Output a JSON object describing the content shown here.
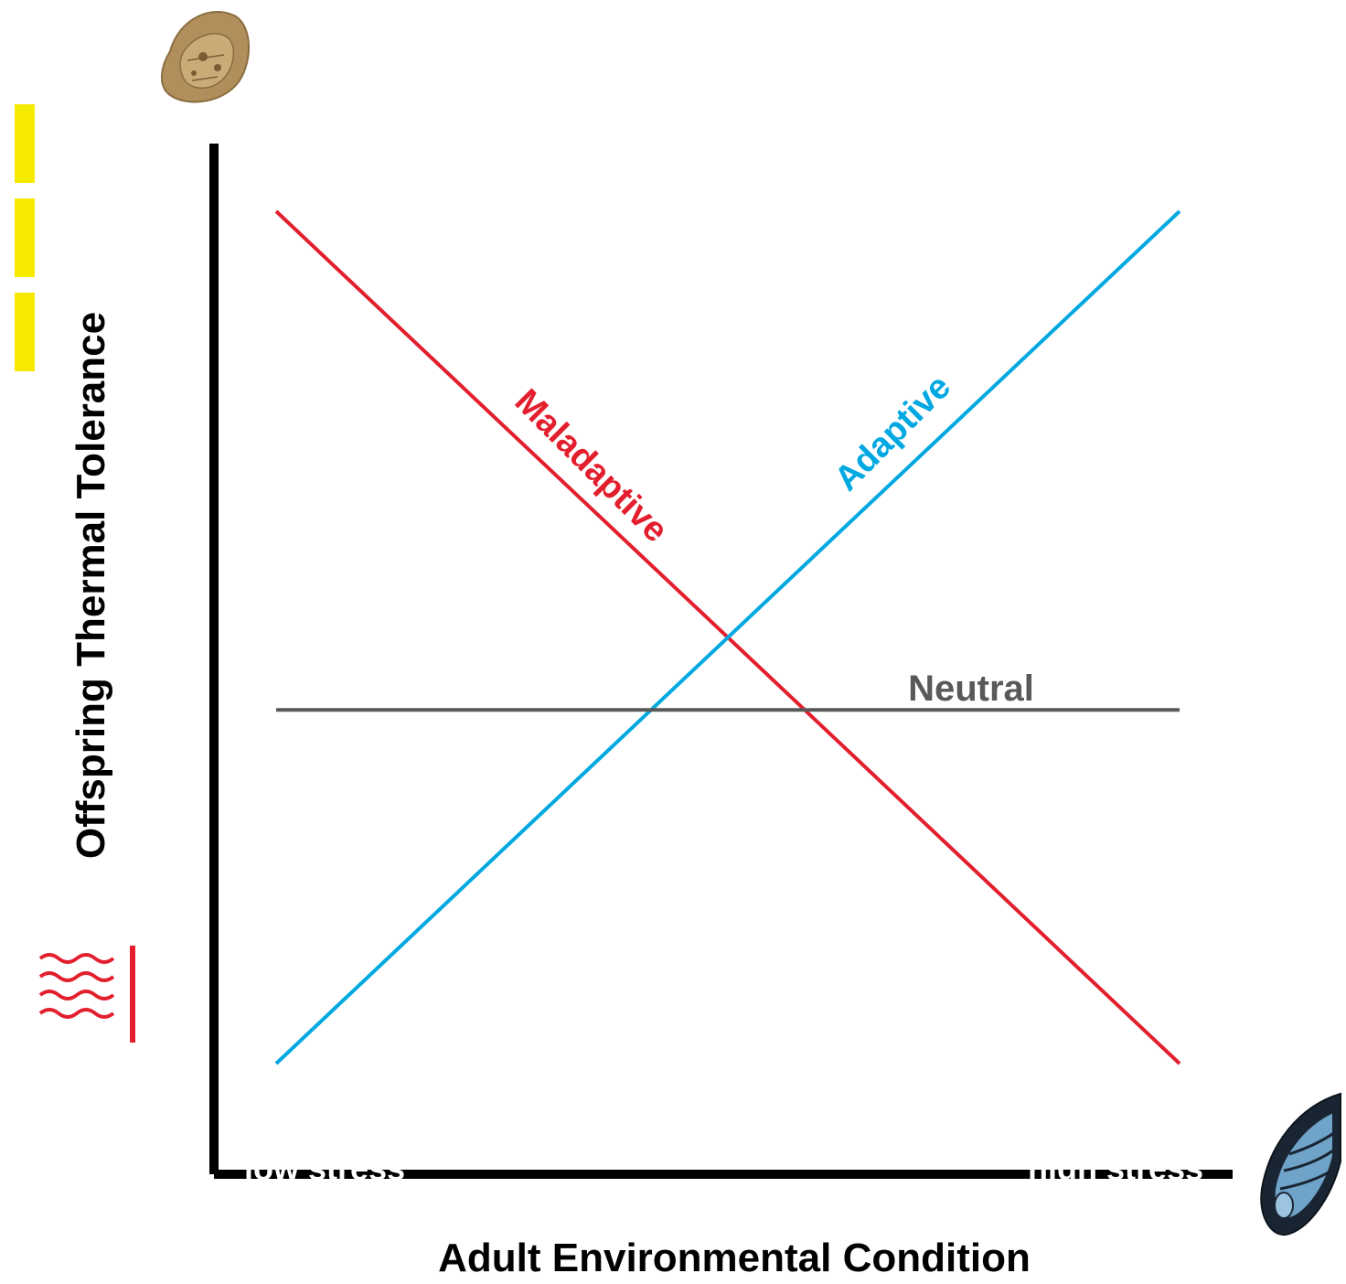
{
  "figure": {
    "y_axis_title": "Offspring Thermal Tolerance",
    "x_axis_title": "Adult Environmental Condition",
    "x_axis_low_label": "low stress",
    "x_axis_high_label": "high stress"
  },
  "chart_data": {
    "type": "line",
    "xlabel": "Adult Environmental Condition",
    "ylabel": "Offspring Thermal Tolerance",
    "x_tick_labels": [
      "low stress",
      "high stress"
    ],
    "series": [
      {
        "name": "Maladaptive",
        "color": "#e31e2d",
        "x": [
          0,
          1
        ],
        "y": [
          1,
          0
        ]
      },
      {
        "name": "Adaptive",
        "color": "#00a8e1",
        "x": [
          0,
          1
        ],
        "y": [
          0,
          1
        ]
      },
      {
        "name": "Neutral",
        "color": "#595959",
        "x": [
          0,
          1
        ],
        "y": [
          0.415,
          0.415
        ]
      }
    ]
  },
  "icons": {
    "top_left": "larva-icon",
    "bottom_right": "mussel-icon",
    "heat": "heat-waves-icon",
    "yellow_bars": "yellow-bars-decoration"
  },
  "colors": {
    "axis": "#000000",
    "heat_icon": "#e31e2d",
    "yellow": "#f5ea00"
  }
}
